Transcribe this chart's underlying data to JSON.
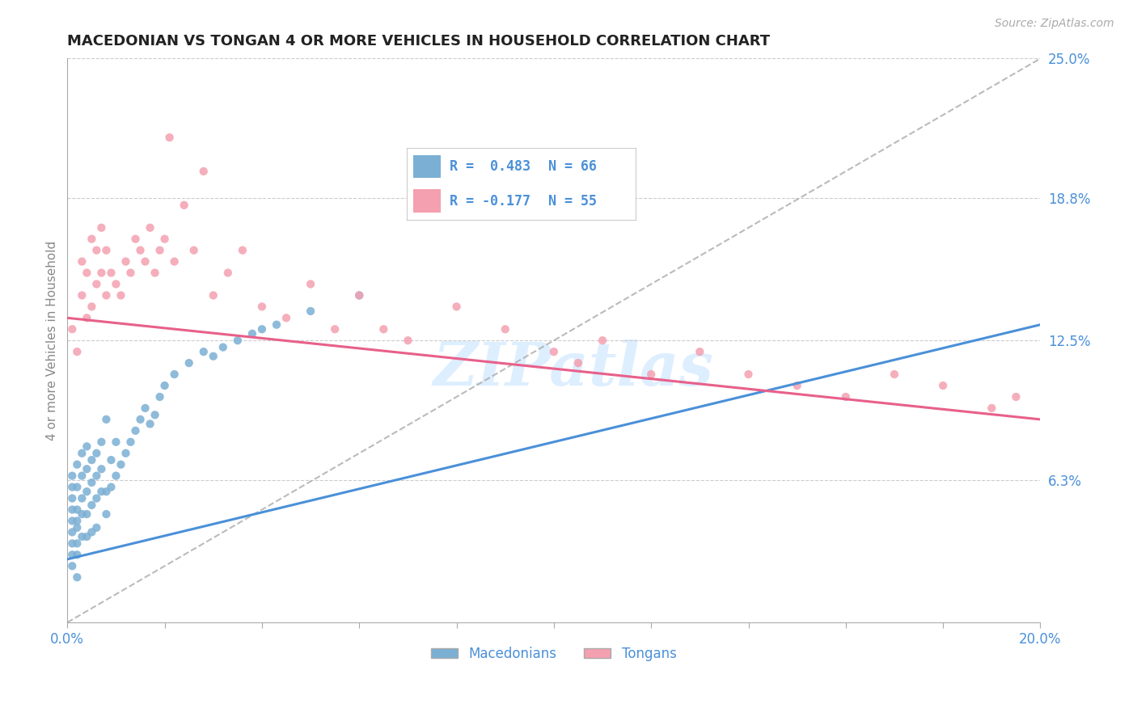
{
  "title": "MACEDONIAN VS TONGAN 4 OR MORE VEHICLES IN HOUSEHOLD CORRELATION CHART",
  "source": "Source: ZipAtlas.com",
  "ylabel": "4 or more Vehicles in Household",
  "xlim": [
    0.0,
    0.2
  ],
  "ylim": [
    0.0,
    0.25
  ],
  "xticks": [
    0.0,
    0.02,
    0.04,
    0.06,
    0.08,
    0.1,
    0.12,
    0.14,
    0.16,
    0.18,
    0.2
  ],
  "grid_color": "#cccccc",
  "background_color": "#ffffff",
  "macedonian_color": "#7bafd4",
  "tongan_color": "#f4a0b0",
  "macedonian_line_color": "#4a90d9",
  "tongan_line_color": "#e8608a",
  "trend_line_color": "#aaaaaa",
  "legend_R_mac": "R =  0.483",
  "legend_N_mac": "N = 66",
  "legend_R_ton": "R = -0.177",
  "legend_N_ton": "N = 55",
  "watermark": "ZIPatlas",
  "mac_line": [
    0.028,
    0.132
  ],
  "ton_line": [
    0.135,
    0.09
  ],
  "macedonian_x": [
    0.001,
    0.001,
    0.001,
    0.001,
    0.001,
    0.001,
    0.001,
    0.001,
    0.001,
    0.002,
    0.002,
    0.002,
    0.002,
    0.002,
    0.002,
    0.002,
    0.002,
    0.003,
    0.003,
    0.003,
    0.003,
    0.003,
    0.004,
    0.004,
    0.004,
    0.004,
    0.004,
    0.005,
    0.005,
    0.005,
    0.005,
    0.006,
    0.006,
    0.006,
    0.006,
    0.007,
    0.007,
    0.007,
    0.008,
    0.008,
    0.008,
    0.009,
    0.009,
    0.01,
    0.01,
    0.011,
    0.012,
    0.013,
    0.014,
    0.015,
    0.016,
    0.017,
    0.018,
    0.019,
    0.02,
    0.022,
    0.025,
    0.028,
    0.03,
    0.032,
    0.035,
    0.038,
    0.04,
    0.043,
    0.05,
    0.06
  ],
  "macedonian_y": [
    0.03,
    0.04,
    0.05,
    0.06,
    0.045,
    0.035,
    0.055,
    0.025,
    0.065,
    0.02,
    0.03,
    0.042,
    0.05,
    0.06,
    0.07,
    0.035,
    0.045,
    0.055,
    0.065,
    0.038,
    0.048,
    0.075,
    0.058,
    0.048,
    0.068,
    0.038,
    0.078,
    0.052,
    0.062,
    0.072,
    0.04,
    0.055,
    0.065,
    0.075,
    0.042,
    0.058,
    0.068,
    0.08,
    0.048,
    0.058,
    0.09,
    0.06,
    0.072,
    0.065,
    0.08,
    0.07,
    0.075,
    0.08,
    0.085,
    0.09,
    0.095,
    0.088,
    0.092,
    0.1,
    0.105,
    0.11,
    0.115,
    0.12,
    0.118,
    0.122,
    0.125,
    0.128,
    0.13,
    0.132,
    0.138,
    0.145
  ],
  "tongan_x": [
    0.001,
    0.002,
    0.003,
    0.003,
    0.004,
    0.004,
    0.005,
    0.005,
    0.006,
    0.006,
    0.007,
    0.007,
    0.008,
    0.008,
    0.009,
    0.01,
    0.011,
    0.012,
    0.013,
    0.014,
    0.015,
    0.016,
    0.017,
    0.018,
    0.019,
    0.02,
    0.021,
    0.022,
    0.024,
    0.026,
    0.028,
    0.03,
    0.033,
    0.036,
    0.04,
    0.045,
    0.05,
    0.055,
    0.06,
    0.065,
    0.07,
    0.08,
    0.09,
    0.1,
    0.105,
    0.11,
    0.12,
    0.13,
    0.14,
    0.15,
    0.16,
    0.17,
    0.18,
    0.19,
    0.195
  ],
  "tongan_y": [
    0.13,
    0.12,
    0.145,
    0.16,
    0.135,
    0.155,
    0.14,
    0.17,
    0.15,
    0.165,
    0.155,
    0.175,
    0.145,
    0.165,
    0.155,
    0.15,
    0.145,
    0.16,
    0.155,
    0.17,
    0.165,
    0.16,
    0.175,
    0.155,
    0.165,
    0.17,
    0.215,
    0.16,
    0.185,
    0.165,
    0.2,
    0.145,
    0.155,
    0.165,
    0.14,
    0.135,
    0.15,
    0.13,
    0.145,
    0.13,
    0.125,
    0.14,
    0.13,
    0.12,
    0.115,
    0.125,
    0.11,
    0.12,
    0.11,
    0.105,
    0.1,
    0.11,
    0.105,
    0.095,
    0.1
  ]
}
